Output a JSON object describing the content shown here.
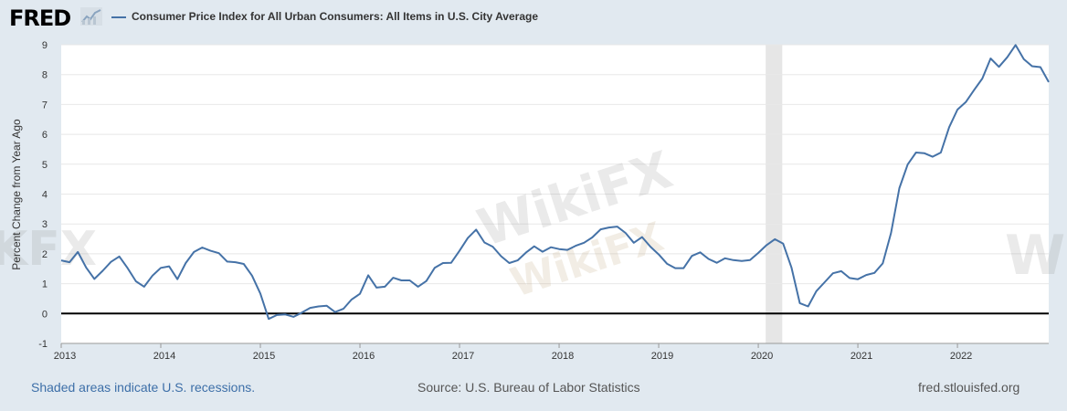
{
  "header": {
    "logo": "FRED",
    "logo_icon": "line-chart-icon",
    "series_title": "Consumer Price Index for All Urban Consumers: All Items in U.S. City Average"
  },
  "footer": {
    "recessions_note": "Shaded areas indicate U.S. recessions.",
    "source": "Source: U.S. Bureau of Labor Statistics",
    "site": "fred.stlouisfed.org"
  },
  "watermarks": [
    "WikiFX",
    "WikiFX",
    "KFX",
    "W"
  ],
  "colors": {
    "series": "#4572a7",
    "recession": "#e6e6e6",
    "background": "#e1e9f0",
    "plot": "#ffffff",
    "zero_line": "#000000",
    "grid": "#e8e8e8"
  },
  "chart_data": {
    "type": "line",
    "ylabel": "Percent Change from Year Ago",
    "xlabel": "",
    "ylim": [
      -1,
      9
    ],
    "yticks": [
      -1,
      0,
      1,
      2,
      3,
      4,
      5,
      6,
      7,
      8,
      9
    ],
    "x_tick_labels": [
      "2013",
      "2014",
      "2015",
      "2016",
      "2017",
      "2018",
      "2019",
      "2020",
      "2021",
      "2022"
    ],
    "grid": true,
    "recession_shading": [
      "2020-02",
      "2020-04"
    ],
    "series": [
      {
        "name": "Consumer Price Index for All Urban Consumers: All Items in U.S. City Average",
        "x": [
          "2013-01",
          "2013-02",
          "2013-03",
          "2013-04",
          "2013-05",
          "2013-06",
          "2013-07",
          "2013-08",
          "2013-09",
          "2013-10",
          "2013-11",
          "2013-12",
          "2014-01",
          "2014-02",
          "2014-03",
          "2014-04",
          "2014-05",
          "2014-06",
          "2014-07",
          "2014-08",
          "2014-09",
          "2014-10",
          "2014-11",
          "2014-12",
          "2015-01",
          "2015-02",
          "2015-03",
          "2015-04",
          "2015-05",
          "2015-06",
          "2015-07",
          "2015-08",
          "2015-09",
          "2015-10",
          "2015-11",
          "2015-12",
          "2016-01",
          "2016-02",
          "2016-03",
          "2016-04",
          "2016-05",
          "2016-06",
          "2016-07",
          "2016-08",
          "2016-09",
          "2016-10",
          "2016-11",
          "2016-12",
          "2017-01",
          "2017-02",
          "2017-03",
          "2017-04",
          "2017-05",
          "2017-06",
          "2017-07",
          "2017-08",
          "2017-09",
          "2017-10",
          "2017-11",
          "2017-12",
          "2018-01",
          "2018-02",
          "2018-03",
          "2018-04",
          "2018-05",
          "2018-06",
          "2018-07",
          "2018-08",
          "2018-09",
          "2018-10",
          "2018-11",
          "2018-12",
          "2019-01",
          "2019-02",
          "2019-03",
          "2019-04",
          "2019-05",
          "2019-06",
          "2019-07",
          "2019-08",
          "2019-09",
          "2019-10",
          "2019-11",
          "2019-12",
          "2020-01",
          "2020-02",
          "2020-03",
          "2020-04",
          "2020-05",
          "2020-06",
          "2020-07",
          "2020-08",
          "2020-09",
          "2020-10",
          "2020-11",
          "2020-12",
          "2021-01",
          "2021-02",
          "2021-03",
          "2021-04",
          "2021-05",
          "2021-06",
          "2021-07",
          "2021-08",
          "2021-09",
          "2021-10",
          "2021-11",
          "2021-12",
          "2022-01",
          "2022-02",
          "2022-03",
          "2022-04",
          "2022-05",
          "2022-06",
          "2022-07",
          "2022-08",
          "2022-09",
          "2022-10",
          "2022-11",
          "2022-12"
        ],
        "y": [
          1.78,
          1.72,
          2.06,
          1.54,
          1.16,
          1.43,
          1.73,
          1.91,
          1.52,
          1.08,
          0.9,
          1.27,
          1.53,
          1.58,
          1.15,
          1.69,
          2.06,
          2.21,
          2.1,
          2.02,
          1.74,
          1.72,
          1.66,
          1.27,
          0.67,
          -0.18,
          -0.05,
          -0.03,
          -0.11,
          0.03,
          0.19,
          0.24,
          0.26,
          0.05,
          0.16,
          0.47,
          0.66,
          1.28,
          0.87,
          0.9,
          1.2,
          1.11,
          1.11,
          0.9,
          1.09,
          1.53,
          1.69,
          1.7,
          2.1,
          2.53,
          2.81,
          2.38,
          2.24,
          1.92,
          1.69,
          1.78,
          2.04,
          2.25,
          2.07,
          2.22,
          2.16,
          2.13,
          2.27,
          2.37,
          2.55,
          2.82,
          2.88,
          2.91,
          2.7,
          2.37,
          2.56,
          2.24,
          1.98,
          1.67,
          1.52,
          1.52,
          1.93,
          2.05,
          1.83,
          1.7,
          1.85,
          1.79,
          1.76,
          1.79,
          2.03,
          2.29,
          2.49,
          2.34,
          1.54,
          0.35,
          0.24,
          0.75,
          1.05,
          1.35,
          1.42,
          1.19,
          1.15,
          1.29,
          1.36,
          1.68,
          2.7,
          4.2,
          4.99,
          5.39,
          5.37,
          5.25,
          5.39,
          6.24,
          6.83,
          7.08,
          7.48,
          7.87,
          8.54,
          8.26,
          8.58,
          8.99,
          8.52,
          8.28,
          8.25,
          7.75
        ]
      }
    ]
  }
}
